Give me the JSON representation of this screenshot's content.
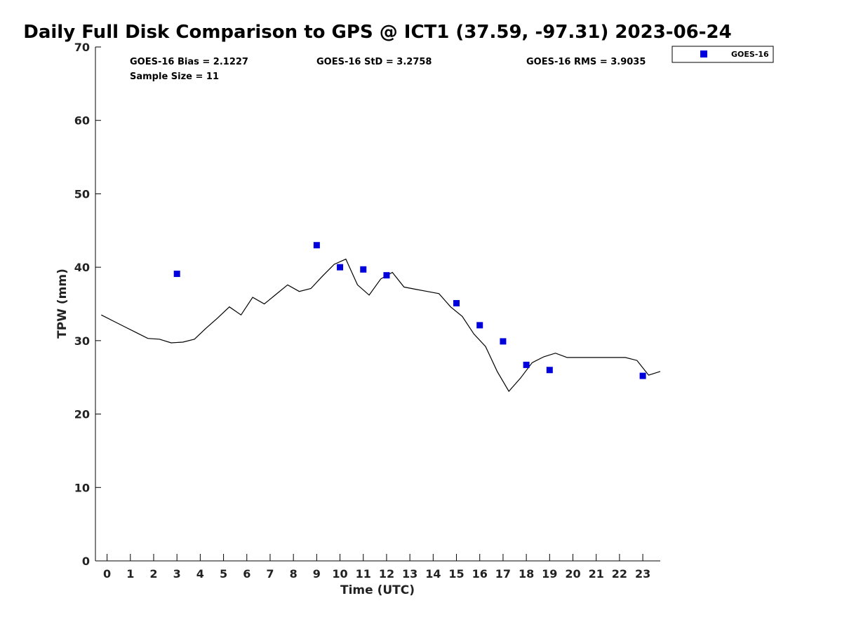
{
  "chart_data": {
    "type": "scatter",
    "title": "Daily Full Disk Comparison to GPS @ ICT1 (37.59, -97.31) 2023-06-24",
    "xlabel": "Time (UTC)",
    "ylabel": "TPW (mm)",
    "xlim": [
      -0.5,
      23.75
    ],
    "ylim": [
      0,
      70
    ],
    "x_ticks": [
      0,
      1,
      2,
      3,
      4,
      5,
      6,
      7,
      8,
      9,
      10,
      11,
      12,
      13,
      14,
      15,
      16,
      17,
      18,
      19,
      20,
      21,
      22,
      23
    ],
    "y_ticks": [
      0,
      10,
      20,
      30,
      40,
      50,
      60,
      70
    ],
    "grid": false,
    "legend_position": "top-right",
    "stats": {
      "bias": "GOES-16 Bias = 2.1227",
      "std": "GOES-16 StD = 3.2758",
      "rms": "GOES-16 RMS = 3.9035",
      "sample": "Sample Size = 11"
    },
    "series": [
      {
        "name": "GOES-16",
        "kind": "scatter",
        "color": "#0000dd",
        "marker": "square",
        "x": [
          3,
          9,
          10,
          11,
          12,
          15,
          16,
          17,
          18,
          19,
          23
        ],
        "y": [
          39.1,
          43.0,
          40.0,
          39.7,
          38.9,
          35.1,
          32.1,
          29.9,
          26.7,
          26.0,
          25.2
        ]
      },
      {
        "kind": "line",
        "color": "#000000",
        "x": [
          -0.25,
          0.25,
          0.75,
          1.25,
          1.75,
          2.25,
          2.75,
          3.25,
          3.75,
          4.25,
          4.75,
          5.25,
          5.75,
          6.25,
          6.75,
          7.25,
          7.75,
          8.25,
          8.75,
          9.25,
          9.75,
          10.25,
          10.75,
          11.25,
          11.75,
          12.25,
          12.75,
          13.25,
          13.75,
          14.25,
          14.75,
          15.25,
          15.75,
          16.25,
          16.75,
          17.25,
          17.75,
          18.25,
          18.75,
          19.25,
          19.75,
          20.25,
          20.75,
          21.25,
          21.75,
          22.25,
          22.75,
          23.25,
          23.75
        ],
        "y": [
          33.5,
          32.7,
          31.9,
          31.1,
          30.3,
          30.2,
          29.7,
          29.8,
          30.2,
          31.7,
          33.1,
          34.6,
          33.5,
          35.9,
          35.0,
          36.3,
          37.6,
          36.7,
          37.1,
          38.8,
          40.4,
          41.1,
          37.6,
          36.2,
          38.4,
          39.3,
          37.3,
          37.0,
          36.7,
          36.4,
          34.6,
          33.3,
          30.9,
          29.2,
          25.8,
          23.1,
          24.9,
          27.0,
          27.8,
          28.3,
          27.7,
          27.7,
          27.7,
          27.7,
          27.7,
          27.7,
          27.3,
          25.3,
          25.8
        ]
      }
    ]
  }
}
